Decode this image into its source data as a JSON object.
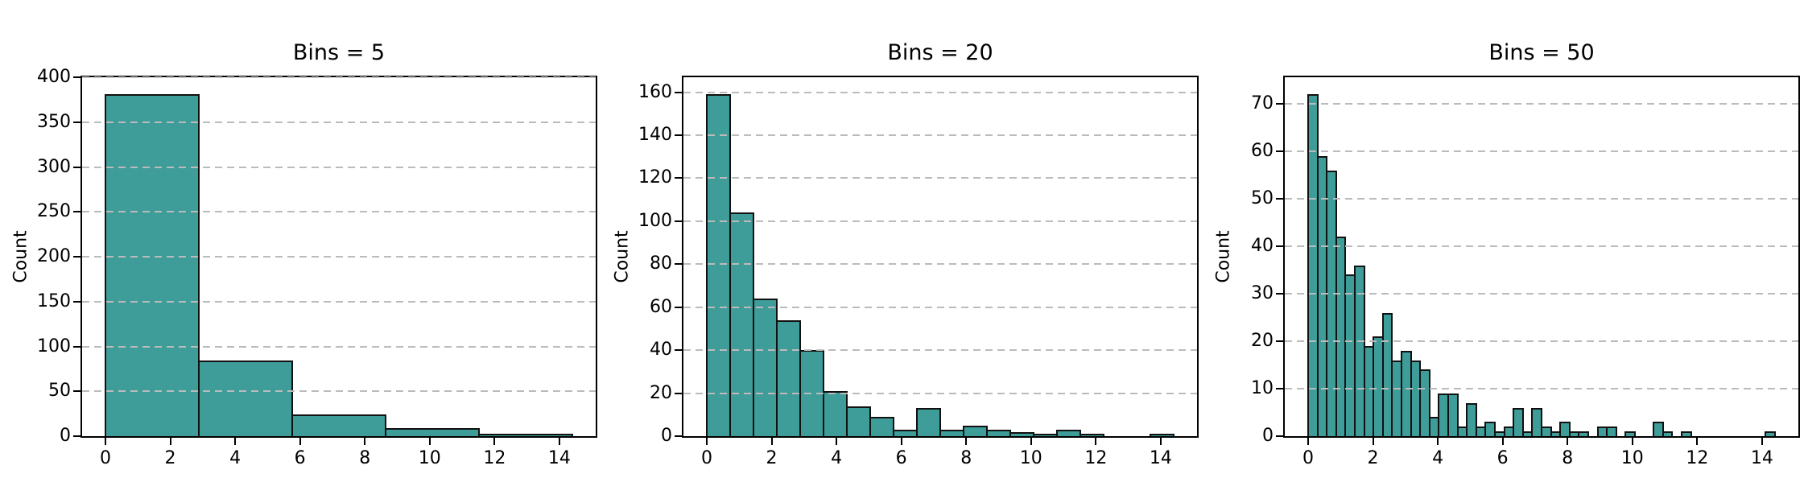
{
  "chart_data": [
    {
      "type": "bar",
      "subtype": "histogram",
      "title": "Bins = 5",
      "bins": 5,
      "ylabel": "Count",
      "xlabel": "",
      "xlim": [
        -0.72,
        15.12
      ],
      "ylim": [
        0,
        400.05
      ],
      "xticks": [
        0,
        2,
        4,
        6,
        8,
        10,
        12,
        14
      ],
      "yticks": [
        0,
        50,
        100,
        150,
        200,
        250,
        300,
        350,
        400
      ],
      "bin_range": [
        0,
        14.4
      ],
      "bin_width": 2.88,
      "values": [
        381,
        84,
        24,
        9,
        2
      ],
      "grid": {
        "axis": "y",
        "style": "dashed",
        "on": true
      },
      "legend": "none"
    },
    {
      "type": "bar",
      "subtype": "histogram",
      "title": "Bins = 20",
      "bins": 20,
      "ylabel": "Count",
      "xlabel": "",
      "xlim": [
        -0.72,
        15.12
      ],
      "ylim": [
        0,
        166.95
      ],
      "xticks": [
        0,
        2,
        4,
        6,
        8,
        10,
        12,
        14
      ],
      "yticks": [
        0,
        20,
        40,
        60,
        80,
        100,
        120,
        140,
        160
      ],
      "bin_range": [
        0,
        14.4
      ],
      "bin_width": 0.72,
      "values": [
        159,
        104,
        64,
        54,
        40,
        21,
        14,
        9,
        3,
        13,
        3,
        5,
        3,
        2,
        1,
        3,
        1,
        0,
        0,
        1
      ],
      "grid": {
        "axis": "y",
        "style": "dashed",
        "on": true
      },
      "legend": "none"
    },
    {
      "type": "bar",
      "subtype": "histogram",
      "title": "Bins = 50",
      "bins": 50,
      "ylabel": "Count",
      "xlabel": "",
      "xlim": [
        -0.72,
        15.12
      ],
      "ylim": [
        0,
        75.6
      ],
      "xticks": [
        0,
        2,
        4,
        6,
        8,
        10,
        12,
        14
      ],
      "yticks": [
        0,
        10,
        20,
        30,
        40,
        50,
        60,
        70
      ],
      "bin_range": [
        0,
        14.4
      ],
      "bin_width": 0.288,
      "values": [
        72,
        59,
        56,
        42,
        34,
        36,
        19,
        21,
        26,
        16,
        18,
        16,
        14,
        4,
        9,
        9,
        2,
        7,
        2,
        3,
        1,
        2,
        6,
        1,
        6,
        2,
        1,
        3,
        1,
        1,
        0,
        2,
        2,
        0,
        1,
        0,
        0,
        3,
        1,
        0,
        1,
        0,
        0,
        0,
        0,
        0,
        0,
        0,
        0,
        1
      ],
      "grid": {
        "axis": "y",
        "style": "dashed",
        "on": true
      },
      "legend": "none"
    }
  ],
  "style": {
    "bar_fill": "#3e9c99",
    "bar_edge": "#111111",
    "grid_color": "#bbbbbb",
    "spine_color": "#000000",
    "text_color": "#000000",
    "background": "#ffffff"
  }
}
